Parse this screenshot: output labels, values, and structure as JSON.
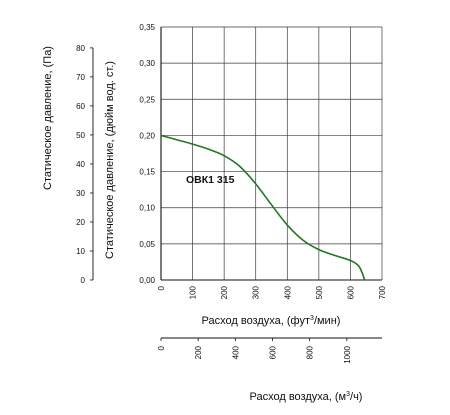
{
  "colors": {
    "curve": "#1f7a1f",
    "grid": "#3a3a3a",
    "axis": "#111111"
  },
  "chart_data": {
    "type": "line",
    "title": "",
    "model_label": "ОВК1 315",
    "grid": true,
    "x": {
      "label_html_parts": [
        "Расход воздуха, (фут",
        "3",
        "/мин)"
      ],
      "range": [
        0,
        700
      ],
      "ticks": [
        0,
        100,
        200,
        300,
        400,
        500,
        600,
        700
      ],
      "tick_labels": [
        "0",
        "100",
        "200",
        "300",
        "400",
        "500",
        "600",
        "700"
      ]
    },
    "x2": {
      "label_parts": [
        "Расход воздуха, (м",
        "3",
        "/ч)"
      ],
      "range": [
        0,
        1189.3
      ],
      "ticks": [
        0,
        200,
        400,
        600,
        800,
        1000
      ],
      "tick_labels": [
        "0",
        "200",
        "400",
        "600",
        "800",
        "1000"
      ]
    },
    "y": {
      "label": "Статическое давление, (дюйм вод. ст.)",
      "range": [
        0,
        0.35
      ],
      "ticks": [
        0,
        0.05,
        0.1,
        0.15,
        0.2,
        0.25,
        0.3,
        0.35
      ],
      "tick_labels": [
        "0,00",
        "0,05",
        "0,10",
        "0,15",
        "0,20",
        "0,25",
        "0,30",
        "0,35"
      ]
    },
    "y2": {
      "label": "Статическое давление, (Па)",
      "range": [
        0,
        87.2
      ],
      "ticks": [
        0,
        10,
        20,
        30,
        40,
        50,
        60,
        70,
        80
      ],
      "tick_labels": [
        "0",
        "10",
        "20",
        "30",
        "40",
        "50",
        "60",
        "70",
        "80"
      ]
    },
    "series": [
      {
        "points": [
          [
            0,
            0.2
          ],
          [
            50,
            0.194
          ],
          [
            100,
            0.188
          ],
          [
            150,
            0.181
          ],
          [
            200,
            0.172
          ],
          [
            250,
            0.157
          ],
          [
            300,
            0.133
          ],
          [
            350,
            0.104
          ],
          [
            400,
            0.076
          ],
          [
            450,
            0.055
          ],
          [
            500,
            0.042
          ],
          [
            550,
            0.034
          ],
          [
            600,
            0.027
          ],
          [
            625,
            0.02
          ],
          [
            637,
            0.01
          ],
          [
            645,
            0.0
          ]
        ]
      }
    ]
  }
}
